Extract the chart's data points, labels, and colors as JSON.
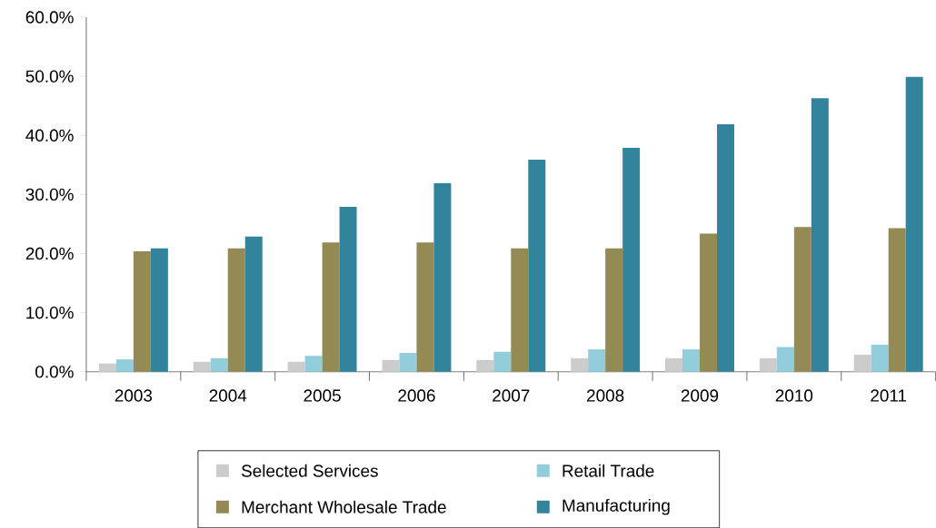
{
  "chart_data": {
    "type": "bar",
    "categories": [
      "2003",
      "2004",
      "2005",
      "2006",
      "2007",
      "2008",
      "2009",
      "2010",
      "2011"
    ],
    "series": [
      {
        "name": "Selected Services",
        "color": "#cccccc",
        "values": [
          1.4,
          1.7,
          1.7,
          2.0,
          2.0,
          2.3,
          2.3,
          2.3,
          2.9
        ]
      },
      {
        "name": "Retail Trade",
        "color": "#92cddc",
        "values": [
          2.1,
          2.3,
          2.7,
          3.2,
          3.4,
          3.8,
          3.8,
          4.2,
          4.6
        ]
      },
      {
        "name": "Merchant Wholesale Trade",
        "color": "#948a54",
        "values": [
          20.4,
          20.9,
          21.9,
          21.9,
          20.9,
          20.9,
          23.4,
          24.5,
          24.3
        ]
      },
      {
        "name": "Manufacturing",
        "color": "#31849b",
        "values": [
          20.9,
          22.9,
          27.9,
          31.9,
          35.9,
          37.9,
          41.9,
          46.3,
          49.9
        ]
      }
    ],
    "ylim": [
      0,
      60
    ],
    "yticks": [
      {
        "value": 0,
        "label": "0.0%"
      },
      {
        "value": 10,
        "label": "10.0%"
      },
      {
        "value": 20,
        "label": "20.0%"
      },
      {
        "value": 30,
        "label": "30.0%"
      },
      {
        "value": 40,
        "label": "40.0%"
      },
      {
        "value": 50,
        "label": "50.0%"
      },
      {
        "value": 60,
        "label": "60.0%"
      }
    ],
    "grid": false,
    "legend": "bottom"
  }
}
